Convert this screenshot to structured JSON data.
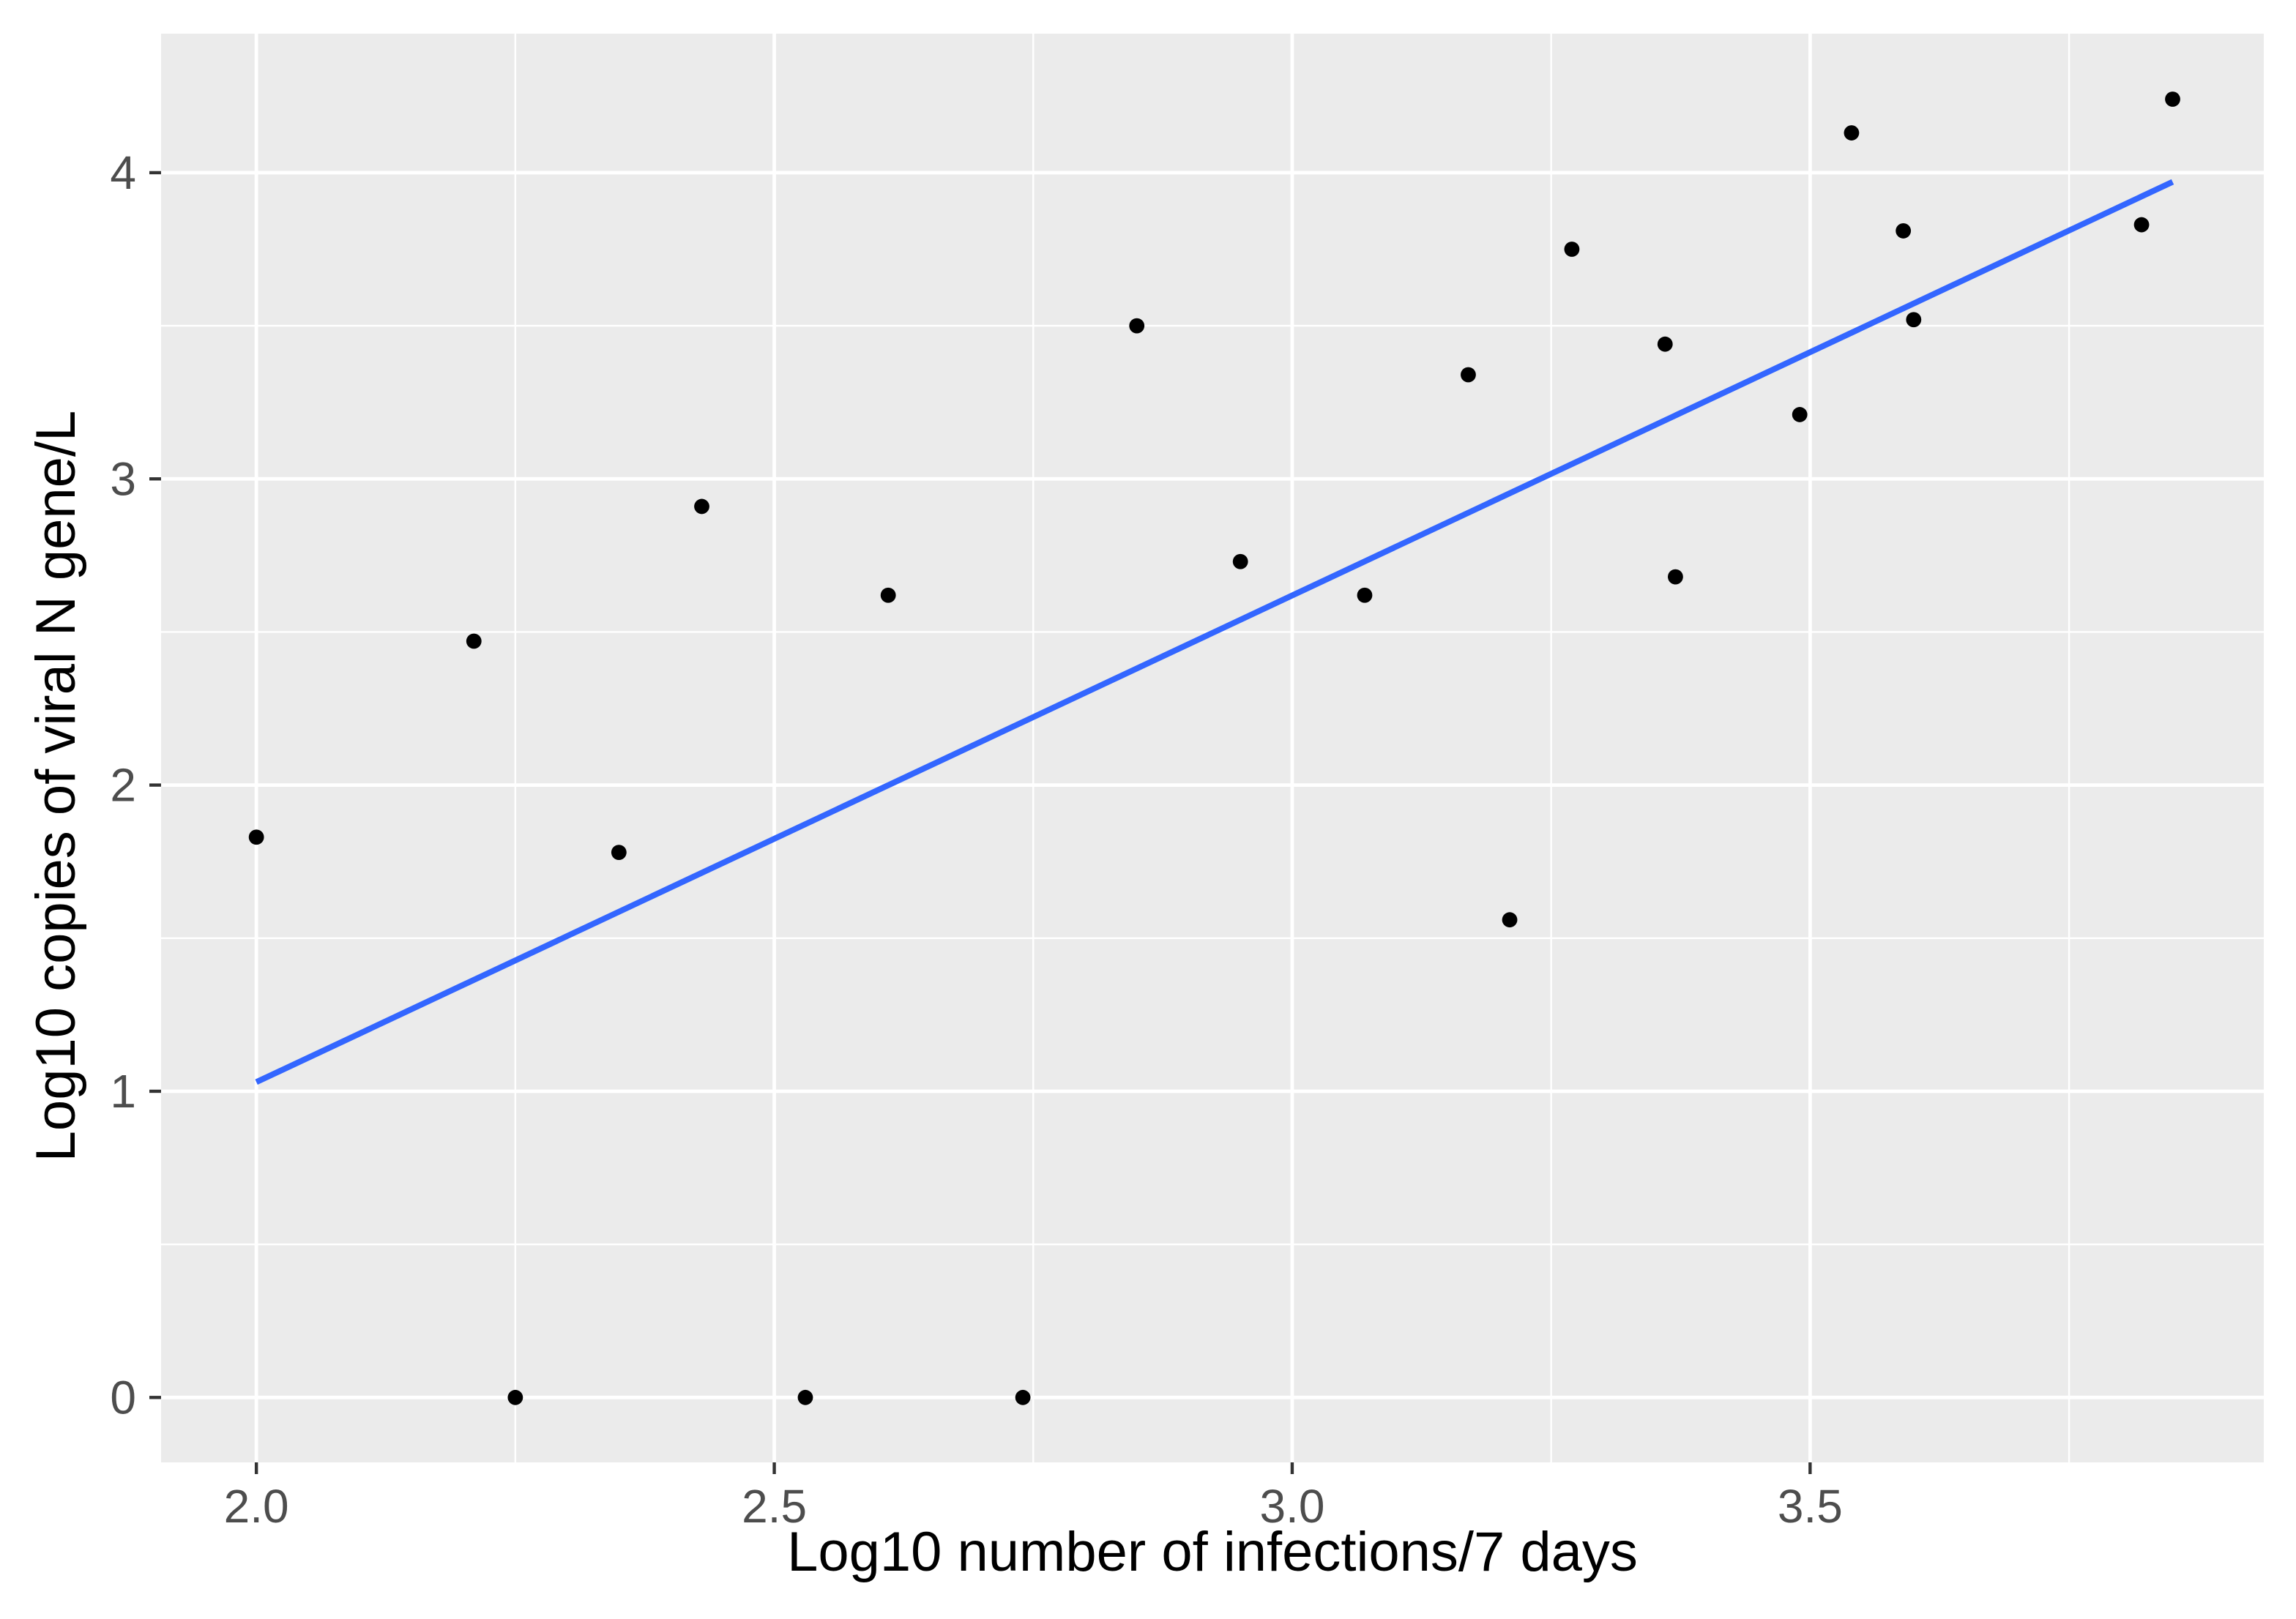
{
  "chart_data": {
    "type": "scatter",
    "title": "",
    "xlabel": "Log10 number of infections/7 days",
    "ylabel": "Log10 copies of viral N gene/L",
    "xlim": [
      1.908,
      3.938
    ],
    "ylim": [
      -0.212,
      4.454
    ],
    "x_ticks": [
      2.0,
      2.5,
      3.0,
      3.5
    ],
    "x_tick_labels": [
      "2.0",
      "2.5",
      "3.0",
      "3.5"
    ],
    "y_ticks": [
      0,
      1,
      2,
      3,
      4
    ],
    "y_tick_labels": [
      "0",
      "1",
      "2",
      "3",
      "4"
    ],
    "x_minor_gridlines": [
      2.25,
      2.75,
      3.25,
      3.75
    ],
    "y_minor_gridlines": [
      0.5,
      1.5,
      2.5,
      3.5
    ],
    "grid": "on",
    "legend": null,
    "points": [
      [
        2.0,
        1.83
      ],
      [
        2.21,
        2.47
      ],
      [
        2.25,
        0.0
      ],
      [
        2.35,
        1.78
      ],
      [
        2.43,
        2.91
      ],
      [
        2.53,
        0.0
      ],
      [
        2.61,
        2.62
      ],
      [
        2.74,
        0.0
      ],
      [
        2.85,
        3.5
      ],
      [
        2.95,
        2.73
      ],
      [
        3.07,
        2.62
      ],
      [
        3.17,
        3.34
      ],
      [
        3.21,
        1.56
      ],
      [
        3.27,
        3.75
      ],
      [
        3.36,
        3.44
      ],
      [
        3.37,
        2.68
      ],
      [
        3.49,
        3.21
      ],
      [
        3.54,
        4.13
      ],
      [
        3.59,
        3.81
      ],
      [
        3.6,
        3.52
      ],
      [
        3.82,
        3.83
      ],
      [
        3.85,
        4.24
      ]
    ],
    "regression_line": {
      "x1": 2.0,
      "y1": 1.03,
      "x2": 3.85,
      "y2": 3.97
    },
    "colors": {
      "point": "#000000",
      "line": "#3366FF",
      "panel_bg": "#EBEBEB",
      "grid": "#FFFFFF",
      "tick_label": "#4D4D4D",
      "tick_mark": "#333333",
      "axis_title": "#000000",
      "background": "#FFFFFF"
    }
  }
}
